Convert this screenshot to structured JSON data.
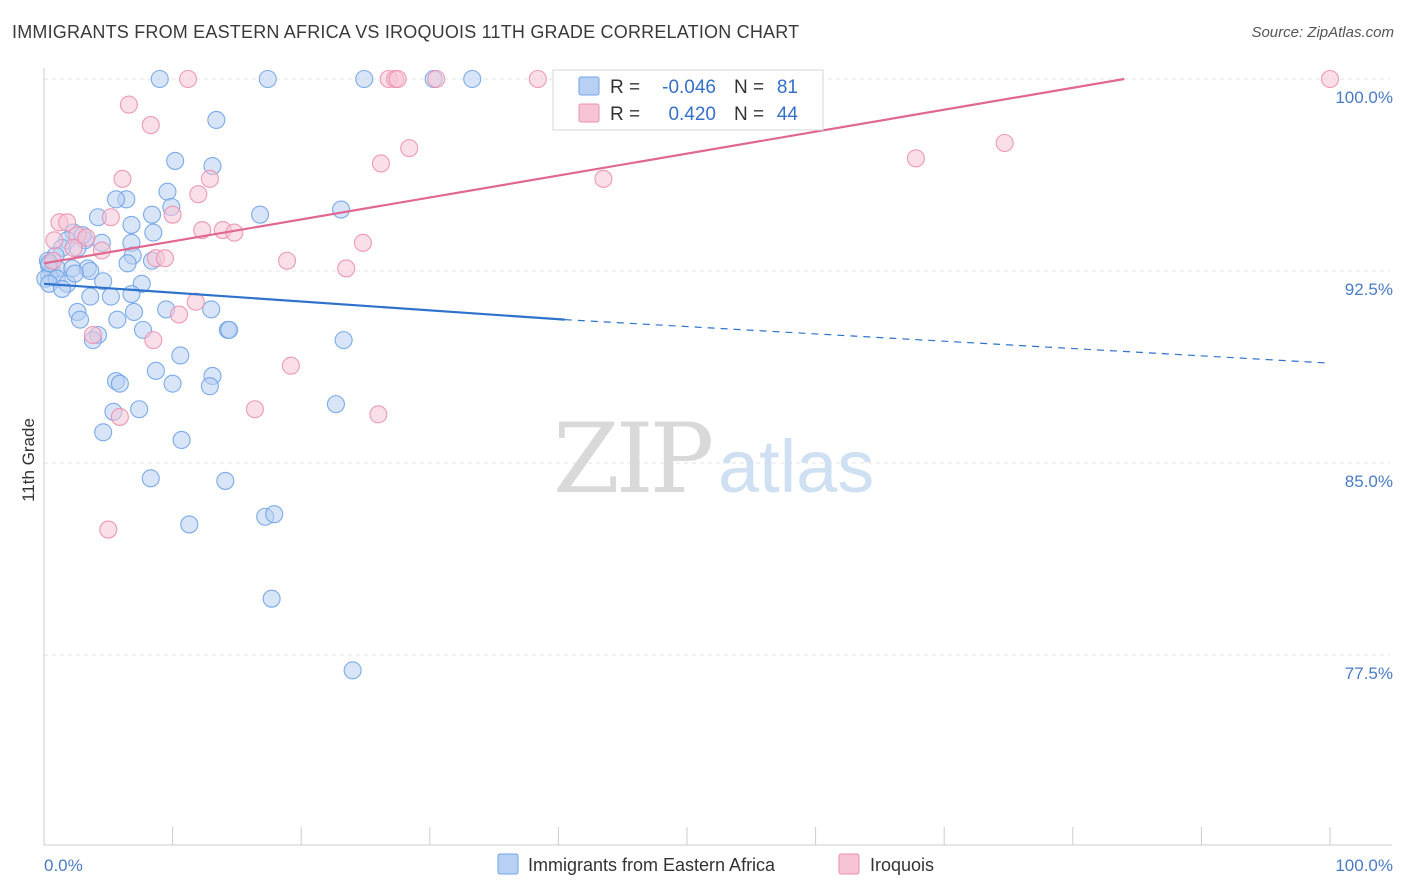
{
  "header": {
    "title": "IMMIGRANTS FROM EASTERN AFRICA VS IROQUOIS 11TH GRADE CORRELATION CHART",
    "source": "Source: ZipAtlas.com"
  },
  "watermark": {
    "zip": "ZIP",
    "atlas": "atlas"
  },
  "colors": {
    "blue": "#6fa3e8",
    "blue_fill": "#b8d0f3",
    "blue_line": "#2f72cc",
    "pink": "#eb8fae",
    "pink_fill": "#f7c4d5",
    "pink_line": "#e06890",
    "tick_text": "#4a7cc4"
  },
  "stats": [
    {
      "r_label": "R =",
      "r_value": "-0.046",
      "n_label": "N =",
      "n_value": "81"
    },
    {
      "r_label": "R =",
      "r_value": "0.420",
      "n_label": "N =",
      "n_value": "44"
    }
  ],
  "chart_data": {
    "type": "scatter",
    "title": "IMMIGRANTS FROM EASTERN AFRICA VS IROQUOIS 11TH GRADE CORRELATION CHART",
    "xlabel": "",
    "ylabel": "11th Grade",
    "xlim": [
      0,
      100
    ],
    "ylim": [
      70,
      101.5
    ],
    "y_ticks": [
      {
        "value": 100.0,
        "label": "100.0%"
      },
      {
        "value": 92.5,
        "label": "92.5%"
      },
      {
        "value": 85.0,
        "label": "85.0%"
      },
      {
        "value": 77.5,
        "label": "77.5%"
      }
    ],
    "x_tick_labels": [
      {
        "value": 0,
        "label": "0.0%"
      },
      {
        "value": 100,
        "label": "100.0%"
      }
    ],
    "grid": true,
    "legend_position": "bottom",
    "series": [
      {
        "name": "Immigrants from Eastern Africa",
        "r": -0.046,
        "n": 81,
        "trend": {
          "x0": 0,
          "y0": 92.0,
          "x1": 40.5,
          "y1": 90.6,
          "dashed_to_x": 100,
          "dashed_to_y": 88.9
        },
        "points": [
          [
            9.0,
            100.0
          ],
          [
            17.4,
            100.0
          ],
          [
            24.9,
            100.0
          ],
          [
            30.3,
            100.0
          ],
          [
            33.3,
            100.0
          ],
          [
            13.4,
            98.4
          ],
          [
            10.2,
            96.8
          ],
          [
            13.1,
            96.6
          ],
          [
            9.6,
            95.6
          ],
          [
            6.4,
            95.3
          ],
          [
            5.6,
            95.3
          ],
          [
            9.9,
            95.0
          ],
          [
            8.4,
            94.7
          ],
          [
            16.8,
            94.7
          ],
          [
            23.1,
            94.9
          ],
          [
            4.2,
            94.6
          ],
          [
            6.8,
            94.3
          ],
          [
            2.3,
            94.0
          ],
          [
            1.8,
            93.7
          ],
          [
            3.2,
            93.7
          ],
          [
            4.5,
            93.6
          ],
          [
            2.6,
            93.4
          ],
          [
            1.4,
            93.4
          ],
          [
            0.9,
            93.1
          ],
          [
            8.5,
            94.0
          ],
          [
            6.8,
            93.6
          ],
          [
            6.9,
            93.1
          ],
          [
            8.4,
            92.9
          ],
          [
            6.5,
            92.8
          ],
          [
            0.3,
            92.9
          ],
          [
            0.4,
            92.7
          ],
          [
            0.6,
            92.5
          ],
          [
            1.0,
            92.6
          ],
          [
            2.2,
            92.6
          ],
          [
            0.4,
            92.3
          ],
          [
            3.4,
            92.6
          ],
          [
            3.6,
            92.5
          ],
          [
            0.1,
            92.2
          ],
          [
            1.0,
            92.2
          ],
          [
            0.4,
            92.0
          ],
          [
            1.8,
            92.0
          ],
          [
            4.6,
            92.1
          ],
          [
            7.6,
            92.0
          ],
          [
            1.4,
            91.8
          ],
          [
            5.2,
            91.5
          ],
          [
            6.8,
            91.6
          ],
          [
            3.6,
            91.5
          ],
          [
            2.6,
            90.9
          ],
          [
            7.0,
            90.9
          ],
          [
            9.5,
            91.0
          ],
          [
            13.0,
            91.0
          ],
          [
            2.8,
            90.6
          ],
          [
            5.7,
            90.6
          ],
          [
            7.7,
            90.2
          ],
          [
            14.3,
            90.2
          ],
          [
            14.4,
            90.2
          ],
          [
            4.2,
            90.0
          ],
          [
            3.8,
            89.8
          ],
          [
            23.3,
            89.8
          ],
          [
            10.6,
            89.2
          ],
          [
            8.7,
            88.6
          ],
          [
            13.1,
            88.4
          ],
          [
            5.6,
            88.2
          ],
          [
            10.0,
            88.1
          ],
          [
            5.9,
            88.1
          ],
          [
            12.9,
            88.0
          ],
          [
            22.7,
            87.3
          ],
          [
            7.4,
            87.1
          ],
          [
            5.4,
            87.0
          ],
          [
            4.6,
            86.2
          ],
          [
            10.7,
            85.9
          ],
          [
            8.3,
            84.4
          ],
          [
            14.1,
            84.3
          ],
          [
            11.3,
            82.6
          ],
          [
            17.2,
            82.9
          ],
          [
            17.9,
            83.0
          ],
          [
            17.7,
            79.7
          ],
          [
            24.0,
            76.9
          ],
          [
            0.4,
            92.8
          ],
          [
            2.4,
            92.4
          ],
          [
            3.0,
            93.9
          ]
        ]
      },
      {
        "name": "Iroquois",
        "r": 0.42,
        "n": 44,
        "trend": {
          "x0": 0,
          "y0": 92.8,
          "x1": 84.0,
          "y1": 100.0
        },
        "points": [
          [
            11.2,
            100.0
          ],
          [
            26.8,
            100.0
          ],
          [
            27.3,
            100.0
          ],
          [
            27.5,
            100.0
          ],
          [
            30.5,
            100.0
          ],
          [
            38.4,
            100.0
          ],
          [
            100.0,
            100.0
          ],
          [
            6.6,
            99.0
          ],
          [
            8.3,
            98.2
          ],
          [
            74.7,
            97.5
          ],
          [
            28.4,
            97.3
          ],
          [
            26.2,
            96.7
          ],
          [
            67.8,
            96.9
          ],
          [
            6.1,
            96.1
          ],
          [
            12.9,
            96.1
          ],
          [
            43.5,
            96.1
          ],
          [
            12.0,
            95.5
          ],
          [
            10.0,
            94.7
          ],
          [
            5.2,
            94.6
          ],
          [
            1.2,
            94.4
          ],
          [
            1.8,
            94.4
          ],
          [
            12.3,
            94.1
          ],
          [
            13.9,
            94.1
          ],
          [
            14.8,
            94.0
          ],
          [
            2.6,
            93.9
          ],
          [
            3.3,
            93.8
          ],
          [
            0.8,
            93.7
          ],
          [
            24.8,
            93.6
          ],
          [
            2.3,
            93.4
          ],
          [
            4.5,
            93.3
          ],
          [
            8.7,
            93.0
          ],
          [
            9.4,
            93.0
          ],
          [
            18.9,
            92.9
          ],
          [
            23.5,
            92.6
          ],
          [
            11.8,
            91.3
          ],
          [
            10.5,
            90.8
          ],
          [
            3.8,
            90.0
          ],
          [
            8.5,
            89.8
          ],
          [
            19.2,
            88.8
          ],
          [
            16.4,
            87.1
          ],
          [
            26.0,
            86.9
          ],
          [
            5.9,
            86.8
          ],
          [
            5.0,
            82.4
          ],
          [
            0.7,
            92.9
          ]
        ]
      }
    ]
  }
}
